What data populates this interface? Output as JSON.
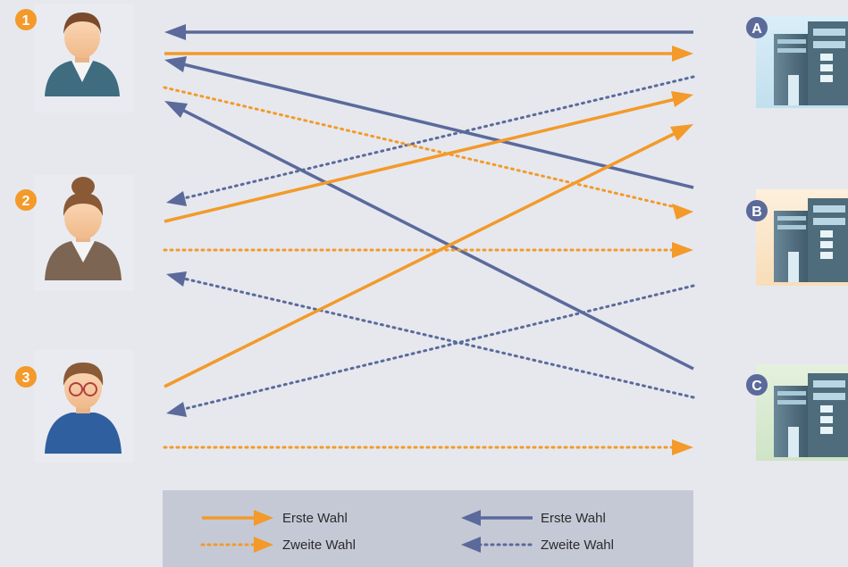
{
  "colors": {
    "background": "#e6e8ee",
    "orange": "#f39a2a",
    "blue": "#5b6a9b",
    "legend_bg": "#c5c9d6",
    "tile_blue": "#cfe6f2",
    "tile_orange": "#fbe6c9",
    "tile_green": "#d8ead2"
  },
  "persons": [
    {
      "number": "1",
      "icon": "man-icon"
    },
    {
      "number": "2",
      "icon": "woman-icon"
    },
    {
      "number": "3",
      "icon": "boy-with-glasses-icon"
    }
  ],
  "companies": [
    {
      "letter": "A",
      "icon": "building-icon"
    },
    {
      "letter": "B",
      "icon": "building-icon"
    },
    {
      "letter": "C",
      "icon": "building-icon"
    }
  ],
  "legend": {
    "orange_solid": "Erste Wahl",
    "orange_dotted": "Zweite Wahl",
    "blue_solid": "Erste Wahl",
    "blue_dotted": "Zweite Wahl"
  }
}
